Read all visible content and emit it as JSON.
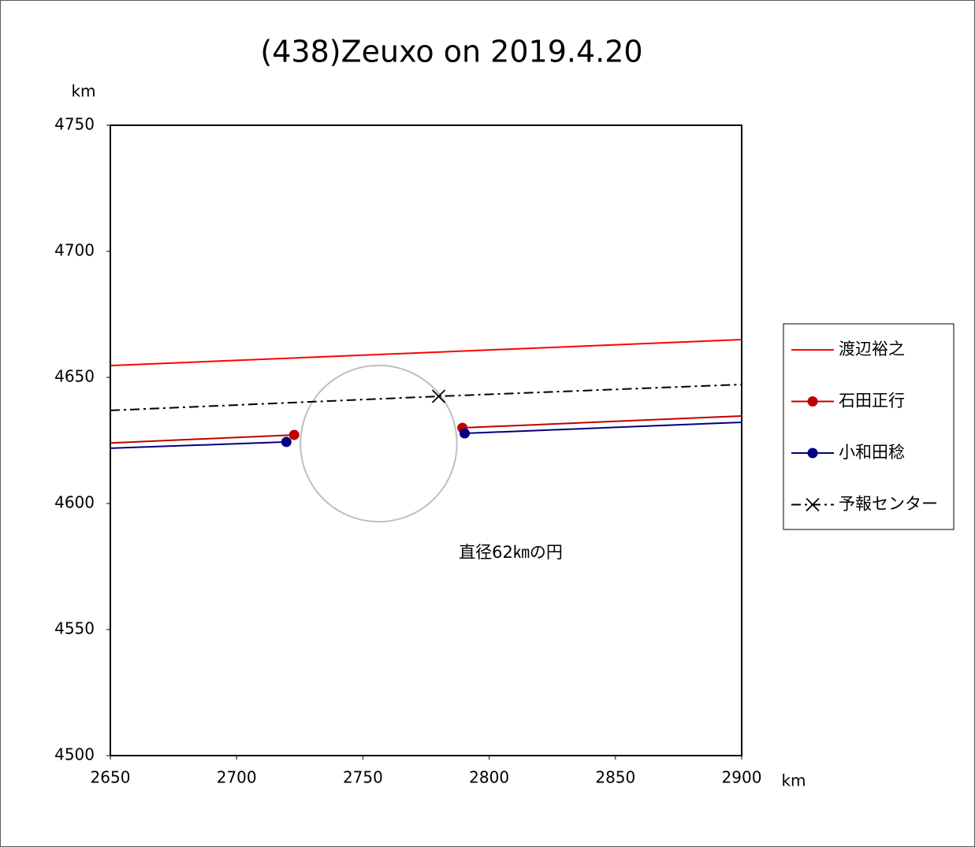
{
  "chart_data": {
    "type": "line",
    "title": "(438)Zeuxo on 2019.4.20",
    "x_unit": "km",
    "y_unit": "km",
    "xlim": [
      2650,
      2900
    ],
    "xticks": [
      2650,
      2700,
      2750,
      2800,
      2850,
      2900
    ],
    "ylim": [
      4500,
      4750
    ],
    "yticks": [
      4500,
      4550,
      4600,
      4650,
      4700,
      4750
    ],
    "grid": false,
    "legend": "right",
    "series": [
      {
        "name": "渡辺裕之",
        "color": "#ff0000",
        "dash": "solid",
        "marker": "none",
        "segments": [
          {
            "x": [
              2650,
              2900
            ],
            "values": [
              4654.7,
              4665
            ]
          }
        ]
      },
      {
        "name": "石田正行",
        "color": "#c00000",
        "dash": "solid",
        "marker": "circle",
        "segments": [
          {
            "x": [
              2650,
              2722.8
            ],
            "values": [
              4624,
              4627.2
            ]
          },
          {
            "x": [
              2789.4,
              2900
            ],
            "values": [
              4630,
              4634.7
            ]
          }
        ]
      },
      {
        "name": "小和田稔",
        "color": "#000080",
        "dash": "solid",
        "marker": "circle",
        "segments": [
          {
            "x": [
              2650,
              2719.7
            ],
            "values": [
              4621.9,
              4624.4
            ]
          },
          {
            "x": [
              2790.3,
              2900
            ],
            "values": [
              4627.8,
              4632.2
            ]
          }
        ]
      },
      {
        "name": "予報センター",
        "color": "#000000",
        "dash": "dashdot",
        "marker": "x",
        "segments": [
          {
            "x": [
              2650,
              2780,
              2900
            ],
            "values": [
              4636.9,
              4642.5,
              4647.2
            ]
          }
        ]
      }
    ],
    "circle": {
      "cx": 2756.25,
      "cy": 4623.75,
      "r": 31,
      "color": "#bfbfbf",
      "label": "直径62㎞の円"
    }
  }
}
